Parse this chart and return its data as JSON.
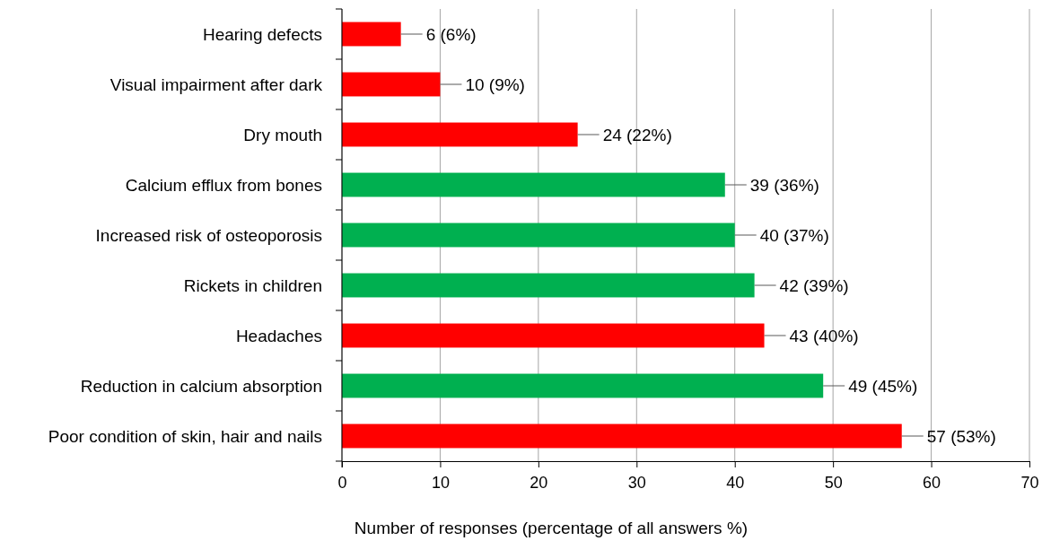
{
  "chart_data": {
    "type": "bar",
    "orientation": "horizontal",
    "xlabel": "Number of responses (percentage of all answers %)",
    "categories": [
      "Hearing defects",
      "Visual impairment after dark",
      "Dry mouth",
      "Calcium efflux from bones",
      "Increased risk of osteoporosis",
      "Rickets in children",
      "Headaches",
      "Reduction in calcium absorption",
      "Poor condition of skin, hair and nails"
    ],
    "values": [
      6,
      10,
      24,
      39,
      40,
      42,
      43,
      49,
      57
    ],
    "colors": [
      "#ff0000",
      "#ff0000",
      "#ff0000",
      "#00b050",
      "#00b050",
      "#00b050",
      "#ff0000",
      "#00b050",
      "#ff0000"
    ],
    "value_labels": [
      "6 (6%)",
      "10 (9%)",
      "24 (22%)",
      "39 (36%)",
      "40 (37%)",
      "42 (39%)",
      "43 (40%)",
      "49 (45%)",
      "57 (53%)"
    ],
    "xlim": [
      0,
      70
    ],
    "xticks": [
      0,
      10,
      20,
      30,
      40,
      50,
      60,
      70
    ],
    "grid": "x"
  }
}
